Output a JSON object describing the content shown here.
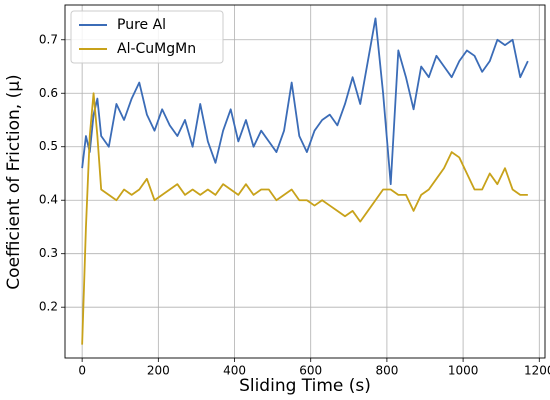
{
  "chart_data": {
    "type": "line",
    "xlabel": "Sliding Time (s)",
    "ylabel": "Coefficient of Friction, (μ)",
    "x": [
      0,
      10,
      20,
      30,
      40,
      50,
      70,
      90,
      110,
      130,
      150,
      170,
      190,
      210,
      230,
      250,
      270,
      290,
      310,
      330,
      350,
      370,
      390,
      410,
      430,
      450,
      470,
      490,
      510,
      530,
      550,
      570,
      590,
      610,
      630,
      650,
      670,
      690,
      710,
      730,
      750,
      770,
      790,
      810,
      830,
      850,
      870,
      890,
      910,
      930,
      950,
      970,
      990,
      1010,
      1030,
      1050,
      1070,
      1090,
      1110,
      1130,
      1150,
      1170
    ],
    "series": [
      {
        "name": "Pure Al",
        "color": "#3b6cb7",
        "values": [
          0.46,
          0.52,
          0.49,
          0.56,
          0.59,
          0.52,
          0.5,
          0.58,
          0.55,
          0.59,
          0.62,
          0.56,
          0.53,
          0.57,
          0.54,
          0.52,
          0.55,
          0.5,
          0.58,
          0.51,
          0.47,
          0.53,
          0.57,
          0.51,
          0.55,
          0.5,
          0.53,
          0.51,
          0.49,
          0.53,
          0.62,
          0.52,
          0.49,
          0.53,
          0.55,
          0.56,
          0.54,
          0.58,
          0.63,
          0.58,
          0.66,
          0.74,
          0.6,
          0.43,
          0.68,
          0.63,
          0.57,
          0.65,
          0.63,
          0.67,
          0.65,
          0.63,
          0.66,
          0.68,
          0.67,
          0.64,
          0.66,
          0.7,
          0.69,
          0.7,
          0.63,
          0.66
        ]
      },
      {
        "name": "Al-CuMgMn",
        "color": "#c8a21a",
        "values": [
          0.13,
          0.35,
          0.52,
          0.6,
          0.52,
          0.42,
          0.41,
          0.4,
          0.42,
          0.41,
          0.42,
          0.44,
          0.4,
          0.41,
          0.42,
          0.43,
          0.41,
          0.42,
          0.41,
          0.42,
          0.41,
          0.43,
          0.42,
          0.41,
          0.43,
          0.41,
          0.42,
          0.42,
          0.4,
          0.41,
          0.42,
          0.4,
          0.4,
          0.39,
          0.4,
          0.39,
          0.38,
          0.37,
          0.38,
          0.36,
          0.38,
          0.4,
          0.42,
          0.42,
          0.41,
          0.41,
          0.38,
          0.41,
          0.42,
          0.44,
          0.46,
          0.49,
          0.48,
          0.45,
          0.42,
          0.42,
          0.45,
          0.43,
          0.46,
          0.42,
          0.41,
          0.41
        ]
      }
    ],
    "xlim": [
      -45,
      1215
    ],
    "xticks": [
      0,
      200,
      400,
      600,
      800,
      1000,
      1200
    ],
    "ylim": [
      0.105,
      0.765
    ],
    "yticks": [
      0.2,
      0.3,
      0.4,
      0.5,
      0.6,
      0.7
    ],
    "grid": true,
    "legend": "upper left"
  }
}
